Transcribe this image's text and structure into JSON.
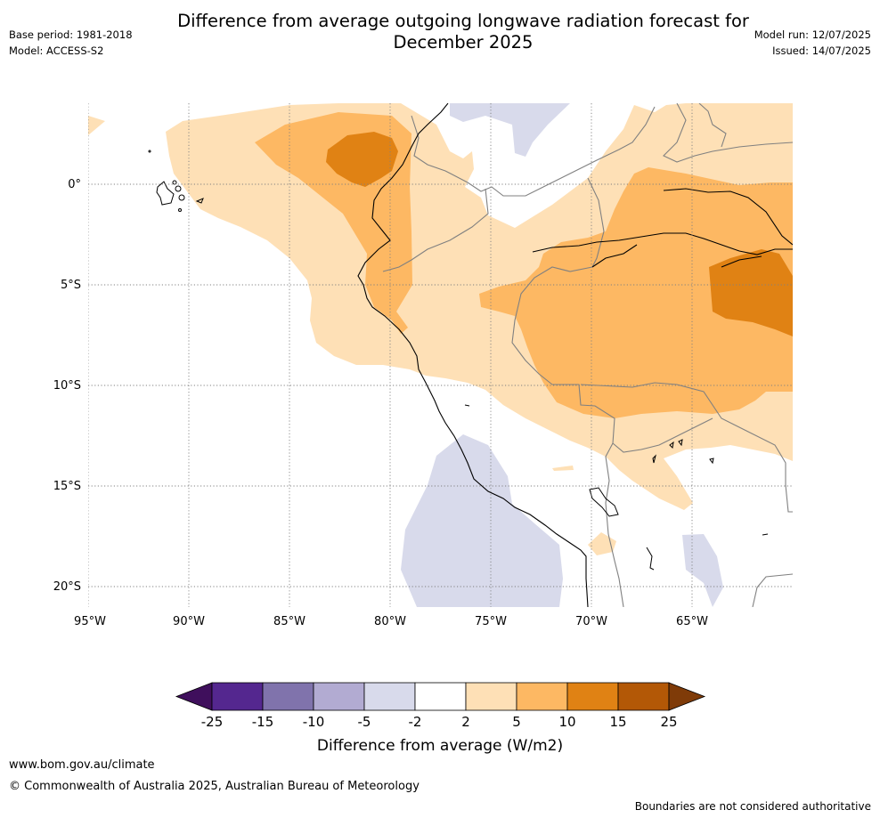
{
  "header": {
    "title": "Difference from average outgoing longwave radiation forecast for December 2025",
    "base_period": "Base period: 1981-2018",
    "model": "Model: ACCESS-S2",
    "model_run": "Model run: 12/07/2025",
    "issued": "Issued: 14/07/2025"
  },
  "map": {
    "longitude_labels": [
      "95°W",
      "90°W",
      "85°W",
      "80°W",
      "75°W",
      "70°W",
      "65°W"
    ],
    "latitude_labels": [
      "0°",
      "5°S",
      "10°S",
      "15°S",
      "20°S"
    ]
  },
  "legend": {
    "title": "Difference from average (W/m2)",
    "tick_labels": [
      "-25",
      "-15",
      "-10",
      "-5",
      "-2",
      "2",
      "5",
      "10",
      "15",
      "25"
    ],
    "colors": [
      "#3f0f5c",
      "#54278f",
      "#8073ac",
      "#b2abd2",
      "#d8daeb",
      "#ffffff",
      "#fee0b6",
      "#fdb863",
      "#e08214",
      "#b35806",
      "#7f3b08"
    ]
  },
  "footer": {
    "url": "www.bom.gov.au/climate",
    "copyright": "© Commonwealth of Australia 2025, Australian Bureau of Meteorology",
    "disclaimer": "Boundaries are not considered authoritative"
  }
}
